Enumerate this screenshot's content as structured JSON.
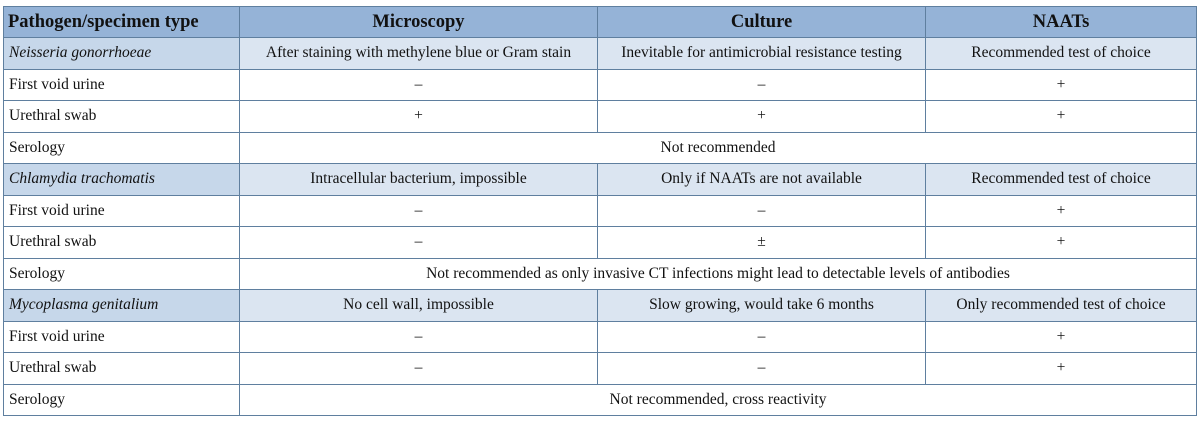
{
  "headers": [
    "Pathogen/specimen type",
    "Microscopy",
    "Culture",
    "NAATs"
  ],
  "sections": [
    {
      "pathogen": "Neisseria gonorrhoeae",
      "notes": [
        "After staining with methylene blue or Gram stain",
        "Inevitable for antimicrobial resistance testing",
        "Recommended test of choice"
      ],
      "rows": [
        {
          "label": "First void urine",
          "values": [
            "–",
            "–",
            "+"
          ]
        },
        {
          "label": "Urethral swab",
          "values": [
            "+",
            "+",
            "+"
          ]
        }
      ],
      "serology_label": "Serology",
      "serology_text": "Not recommended"
    },
    {
      "pathogen": "Chlamydia trachomatis",
      "notes": [
        "Intracellular bacterium, impossible",
        "Only if NAATs are not available",
        "Recommended test of choice"
      ],
      "rows": [
        {
          "label": "First void urine",
          "values": [
            "–",
            "–",
            "+"
          ]
        },
        {
          "label": "Urethral swab",
          "values": [
            "–",
            "±",
            "+"
          ]
        }
      ],
      "serology_label": "Serology",
      "serology_text": "Not recommended as only invasive CT infections might lead to detectable levels of antibodies"
    },
    {
      "pathogen": "Mycoplasma genitalium",
      "notes": [
        "No cell wall, impossible",
        "Slow growing, would take 6 months",
        "Only recommended test of choice"
      ],
      "rows": [
        {
          "label": "First void urine",
          "values": [
            "–",
            "–",
            "+"
          ]
        },
        {
          "label": "Urethral swab",
          "values": [
            "–",
            "–",
            "+"
          ]
        }
      ],
      "serology_label": "Serology",
      "serology_text": "Not recommended, cross reactivity"
    }
  ],
  "colors": {
    "header_bg": "#95b3d7",
    "pathogen_name_bg": "#c6d7ea",
    "pathogen_row_bg": "#dbe5f1",
    "border": "#5f7f9f"
  }
}
